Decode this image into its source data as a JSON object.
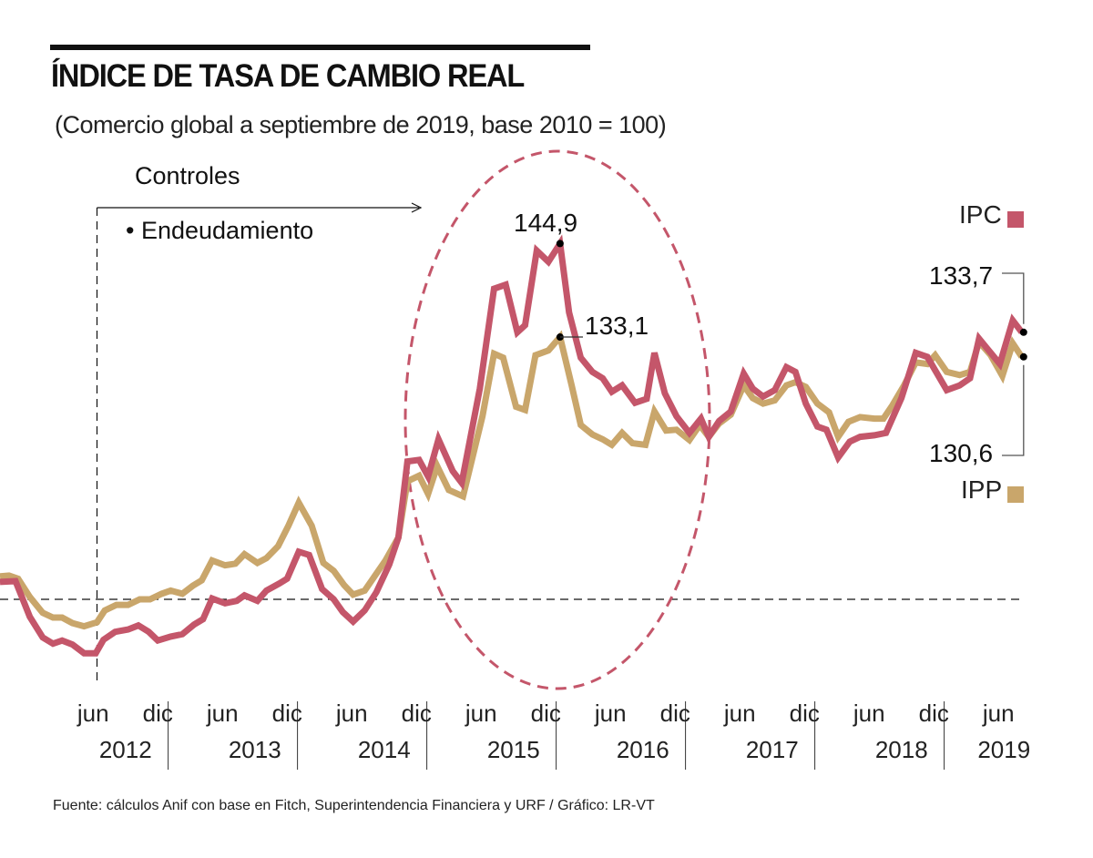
{
  "chart_data": {
    "type": "line",
    "title": "ÍNDICE DE TASA DE CAMBIO REAL",
    "subtitle": "(Comercio global a septiembre de 2019, base 2010 = 100)",
    "xlabel": "",
    "ylabel": "",
    "baseline": 100,
    "xlim": [
      2011.7,
      2019.67
    ],
    "ylim": [
      90,
      150
    ],
    "grid": false,
    "legend_placement": "right",
    "x_ticks": [
      {
        "month": "jun",
        "year": "2012",
        "jun_x": 2012.42,
        "dic_x": 2012.92
      },
      {
        "month": "jun",
        "year": "2013",
        "jun_x": 2013.42,
        "dic_x": 2013.92
      },
      {
        "month": "jun",
        "year": "2014",
        "jun_x": 2014.42,
        "dic_x": 2014.92
      },
      {
        "month": "jun",
        "year": "2015",
        "jun_x": 2015.42,
        "dic_x": 2015.92
      },
      {
        "month": "jun",
        "year": "2016",
        "jun_x": 2016.42,
        "dic_x": 2016.92
      },
      {
        "month": "jun",
        "year": "2017",
        "jun_x": 2017.42,
        "dic_x": 2017.92
      },
      {
        "month": "jun",
        "year": "2018",
        "jun_x": 2018.42,
        "dic_x": 2018.92
      },
      {
        "month": "jun",
        "year": "2019",
        "jun_x": 2019.42,
        "dic_x": null
      }
    ],
    "tick_labels": {
      "jun": "jun",
      "dic": "dic"
    },
    "series": [
      {
        "name": "IPC",
        "color": "#c4566a",
        "points": [
          [
            2011.7,
            102.2
          ],
          [
            2011.82,
            102.3
          ],
          [
            2011.93,
            97.8
          ],
          [
            2012.03,
            95.2
          ],
          [
            2012.11,
            94.4
          ],
          [
            2012.18,
            94.8
          ],
          [
            2012.26,
            94.3
          ],
          [
            2012.35,
            93.2
          ],
          [
            2012.44,
            93.2
          ],
          [
            2012.5,
            94.9
          ],
          [
            2012.59,
            95.9
          ],
          [
            2012.69,
            96.2
          ],
          [
            2012.77,
            96.7
          ],
          [
            2012.85,
            95.9
          ],
          [
            2012.92,
            94.8
          ],
          [
            2013.02,
            95.3
          ],
          [
            2013.11,
            95.6
          ],
          [
            2013.2,
            96.8
          ],
          [
            2013.27,
            97.5
          ],
          [
            2013.34,
            100.1
          ],
          [
            2013.44,
            99.5
          ],
          [
            2013.53,
            99.8
          ],
          [
            2013.59,
            100.5
          ],
          [
            2013.69,
            99.8
          ],
          [
            2013.76,
            101.1
          ],
          [
            2013.86,
            102.0
          ],
          [
            2013.92,
            102.6
          ],
          [
            2014.01,
            106.0
          ],
          [
            2014.09,
            105.6
          ],
          [
            2014.19,
            101.3
          ],
          [
            2014.28,
            100.0
          ],
          [
            2014.35,
            98.4
          ],
          [
            2014.43,
            97.2
          ],
          [
            2014.52,
            98.6
          ],
          [
            2014.61,
            100.9
          ],
          [
            2014.71,
            104.4
          ],
          [
            2014.78,
            107.8
          ],
          [
            2014.85,
            117.4
          ],
          [
            2014.94,
            117.6
          ],
          [
            2015.01,
            115.5
          ],
          [
            2015.09,
            120.2
          ],
          [
            2015.2,
            116.2
          ],
          [
            2015.27,
            114.7
          ],
          [
            2015.41,
            126.6
          ],
          [
            2015.52,
            139.2
          ],
          [
            2015.61,
            139.7
          ],
          [
            2015.7,
            133.7
          ],
          [
            2015.76,
            134.6
          ],
          [
            2015.85,
            144.0
          ],
          [
            2015.94,
            142.6
          ],
          [
            2016.03,
            144.9
          ],
          [
            2016.1,
            136.2
          ],
          [
            2016.19,
            130.5
          ],
          [
            2016.28,
            128.7
          ],
          [
            2016.36,
            127.9
          ],
          [
            2016.43,
            126.2
          ],
          [
            2016.51,
            127.0
          ],
          [
            2016.61,
            124.8
          ],
          [
            2016.7,
            125.3
          ],
          [
            2016.76,
            131.1
          ],
          [
            2016.84,
            126.0
          ],
          [
            2016.93,
            123.1
          ],
          [
            2017.03,
            121.0
          ],
          [
            2017.12,
            122.8
          ],
          [
            2017.18,
            120.5
          ],
          [
            2017.26,
            122.5
          ],
          [
            2017.35,
            123.7
          ],
          [
            2017.45,
            128.5
          ],
          [
            2017.52,
            126.6
          ],
          [
            2017.6,
            125.6
          ],
          [
            2017.69,
            126.4
          ],
          [
            2017.78,
            129.3
          ],
          [
            2017.85,
            128.7
          ],
          [
            2017.93,
            124.7
          ],
          [
            2018.02,
            121.8
          ],
          [
            2018.09,
            121.4
          ],
          [
            2018.18,
            117.9
          ],
          [
            2018.27,
            119.9
          ],
          [
            2018.35,
            120.5
          ],
          [
            2018.46,
            120.7
          ],
          [
            2018.55,
            121.0
          ],
          [
            2018.67,
            125.4
          ],
          [
            2018.78,
            131.1
          ],
          [
            2018.87,
            130.6
          ],
          [
            2019.02,
            126.4
          ],
          [
            2019.12,
            127.0
          ],
          [
            2019.2,
            127.9
          ],
          [
            2019.27,
            132.9
          ],
          [
            2019.36,
            131.1
          ],
          [
            2019.43,
            129.7
          ],
          [
            2019.53,
            135.2
          ],
          [
            2019.6,
            133.7
          ]
        ]
      },
      {
        "name": "IPP",
        "color": "#c9a66b",
        "points": [
          [
            2011.7,
            102.9
          ],
          [
            2011.77,
            103.0
          ],
          [
            2011.84,
            102.6
          ],
          [
            2011.93,
            100.3
          ],
          [
            2012.03,
            98.3
          ],
          [
            2012.11,
            97.7
          ],
          [
            2012.18,
            97.7
          ],
          [
            2012.26,
            97.0
          ],
          [
            2012.35,
            96.6
          ],
          [
            2012.45,
            97.1
          ],
          [
            2012.51,
            98.6
          ],
          [
            2012.6,
            99.3
          ],
          [
            2012.69,
            99.3
          ],
          [
            2012.78,
            100.0
          ],
          [
            2012.86,
            100.0
          ],
          [
            2012.95,
            100.7
          ],
          [
            2013.02,
            101.1
          ],
          [
            2013.11,
            100.7
          ],
          [
            2013.19,
            101.7
          ],
          [
            2013.26,
            102.4
          ],
          [
            2013.34,
            104.9
          ],
          [
            2013.44,
            104.3
          ],
          [
            2013.52,
            104.5
          ],
          [
            2013.59,
            105.7
          ],
          [
            2013.69,
            104.6
          ],
          [
            2013.76,
            105.2
          ],
          [
            2013.85,
            106.7
          ],
          [
            2013.93,
            109.3
          ],
          [
            2014.01,
            112.2
          ],
          [
            2014.11,
            109.3
          ],
          [
            2014.2,
            104.6
          ],
          [
            2014.28,
            103.6
          ],
          [
            2014.36,
            101.8
          ],
          [
            2014.43,
            100.6
          ],
          [
            2014.52,
            101.1
          ],
          [
            2014.6,
            103.0
          ],
          [
            2014.68,
            104.9
          ],
          [
            2014.78,
            107.8
          ],
          [
            2014.85,
            114.9
          ],
          [
            2014.94,
            115.6
          ],
          [
            2015.01,
            113.3
          ],
          [
            2015.08,
            116.8
          ],
          [
            2015.17,
            113.8
          ],
          [
            2015.28,
            113.0
          ],
          [
            2015.43,
            123.1
          ],
          [
            2015.52,
            131.0
          ],
          [
            2015.59,
            130.5
          ],
          [
            2015.69,
            124.3
          ],
          [
            2015.76,
            123.9
          ],
          [
            2015.84,
            130.8
          ],
          [
            2015.94,
            131.4
          ],
          [
            2016.03,
            133.1
          ],
          [
            2016.12,
            127.0
          ],
          [
            2016.19,
            122.0
          ],
          [
            2016.28,
            120.8
          ],
          [
            2016.36,
            120.2
          ],
          [
            2016.43,
            119.5
          ],
          [
            2016.51,
            121.0
          ],
          [
            2016.59,
            119.7
          ],
          [
            2016.69,
            119.5
          ],
          [
            2016.76,
            123.7
          ],
          [
            2016.85,
            121.3
          ],
          [
            2016.93,
            121.4
          ],
          [
            2017.03,
            120.1
          ],
          [
            2017.11,
            122.0
          ],
          [
            2017.18,
            120.5
          ],
          [
            2017.26,
            122.2
          ],
          [
            2017.35,
            123.3
          ],
          [
            2017.45,
            127.0
          ],
          [
            2017.52,
            125.4
          ],
          [
            2017.6,
            124.7
          ],
          [
            2017.69,
            125.1
          ],
          [
            2017.78,
            127.0
          ],
          [
            2017.85,
            127.4
          ],
          [
            2017.93,
            126.8
          ],
          [
            2018.02,
            124.7
          ],
          [
            2018.11,
            123.6
          ],
          [
            2018.18,
            120.5
          ],
          [
            2018.26,
            122.4
          ],
          [
            2018.35,
            123.0
          ],
          [
            2018.46,
            122.8
          ],
          [
            2018.53,
            122.8
          ],
          [
            2018.6,
            124.5
          ],
          [
            2018.69,
            127.0
          ],
          [
            2018.78,
            129.9
          ],
          [
            2018.87,
            129.7
          ],
          [
            2018.93,
            130.8
          ],
          [
            2019.02,
            128.7
          ],
          [
            2019.12,
            128.3
          ],
          [
            2019.2,
            128.7
          ],
          [
            2019.27,
            132.5
          ],
          [
            2019.36,
            130.8
          ],
          [
            2019.45,
            128.2
          ],
          [
            2019.53,
            132.3
          ],
          [
            2019.6,
            130.6
          ]
        ]
      }
    ],
    "annotations": {
      "controls_title": "Controles",
      "controls_item": "• Endeudamiento",
      "controls_start": 2012.45,
      "peak_ipc": {
        "label": "144,9",
        "x": 2016.03,
        "y": 144.9
      },
      "peak_ipp": {
        "label": "133,1",
        "x": 2016.03,
        "y": 133.1
      },
      "last_ipc": {
        "label": "133,7",
        "x": 2019.6,
        "y": 133.7
      },
      "last_ipp": {
        "label": "130,6",
        "x": 2019.6,
        "y": 130.6
      }
    },
    "legend": {
      "ipc": "IPC",
      "ipp": "IPP"
    }
  },
  "footer": "Fuente: cálculos Anif con base en Fitch, Superintendencia Financiera y URF / Gráfico: LR-VT"
}
